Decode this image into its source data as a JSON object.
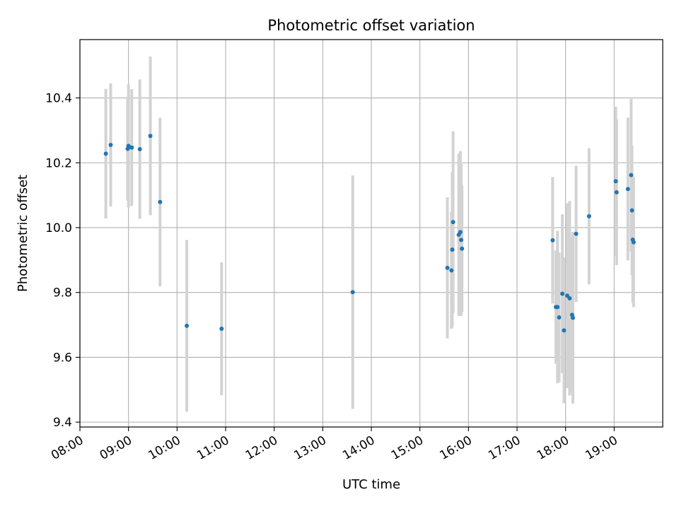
{
  "chart_data": {
    "type": "scatter",
    "title": "Photometric offset variation",
    "xlabel": "UTC time",
    "ylabel": "Photometric offset",
    "x_is_time": true,
    "xlim": [
      "08:00",
      "20:00"
    ],
    "ylim": [
      9.385,
      10.58
    ],
    "xticks": [
      "08:00",
      "09:00",
      "10:00",
      "11:00",
      "12:00",
      "13:00",
      "14:00",
      "15:00",
      "16:00",
      "17:00",
      "18:00",
      "19:00"
    ],
    "yticks": [
      "9.4",
      "9.6",
      "9.8",
      "10.0",
      "10.2",
      "10.4"
    ],
    "grid": true,
    "colors": {
      "point": "#1f77b4",
      "errorbar": "#d3d3d3",
      "grid": "#b0b0b0"
    },
    "series": [
      {
        "points": [
          {
            "x": "08:32",
            "y": 10.228,
            "err": 0.2
          },
          {
            "x": "08:38",
            "y": 10.255,
            "err": 0.19
          },
          {
            "x": "08:59",
            "y": 10.243,
            "err": 0.16
          },
          {
            "x": "09:00",
            "y": 10.252,
            "err": 0.19
          },
          {
            "x": "09:04",
            "y": 10.247,
            "err": 0.18
          },
          {
            "x": "09:14",
            "y": 10.242,
            "err": 0.215
          },
          {
            "x": "09:27",
            "y": 10.283,
            "err": 0.245
          },
          {
            "x": "09:39",
            "y": 10.079,
            "err": 0.26
          },
          {
            "x": "10:12",
            "y": 9.697,
            "err": 0.265
          },
          {
            "x": "10:55",
            "y": 9.688,
            "err": 0.205
          },
          {
            "x": "13:37",
            "y": 9.801,
            "err": 0.36
          },
          {
            "x": "15:34",
            "y": 9.876,
            "err": 0.218
          },
          {
            "x": "15:39",
            "y": 9.868,
            "err": 0.18
          },
          {
            "x": "15:40",
            "y": 9.932,
            "err": 0.24
          },
          {
            "x": "15:41",
            "y": 10.017,
            "err": 0.28
          },
          {
            "x": "15:48",
            "y": 9.978,
            "err": 0.25
          },
          {
            "x": "15:50",
            "y": 9.986,
            "err": 0.25
          },
          {
            "x": "15:51",
            "y": 9.962,
            "err": 0.235
          },
          {
            "x": "15:52",
            "y": 9.935,
            "err": 0.195
          },
          {
            "x": "17:44",
            "y": 9.961,
            "err": 0.195
          },
          {
            "x": "17:48",
            "y": 9.755,
            "err": 0.175
          },
          {
            "x": "17:50",
            "y": 9.755,
            "err": 0.235
          },
          {
            "x": "17:52",
            "y": 9.723,
            "err": 0.2
          },
          {
            "x": "17:56",
            "y": 9.796,
            "err": 0.245
          },
          {
            "x": "17:58",
            "y": 9.683,
            "err": 0.225
          },
          {
            "x": "18:02",
            "y": 9.79,
            "err": 0.285
          },
          {
            "x": "18:05",
            "y": 9.782,
            "err": 0.3
          },
          {
            "x": "18:08",
            "y": 9.731,
            "err": 0.24
          },
          {
            "x": "18:09",
            "y": 9.722,
            "err": 0.265
          },
          {
            "x": "18:13",
            "y": 9.981,
            "err": 0.21
          },
          {
            "x": "18:29",
            "y": 10.035,
            "err": 0.21
          },
          {
            "x": "19:02",
            "y": 10.143,
            "err": 0.23
          },
          {
            "x": "19:03",
            "y": 10.109,
            "err": 0.225
          },
          {
            "x": "19:17",
            "y": 10.119,
            "err": 0.22
          },
          {
            "x": "19:21",
            "y": 10.162,
            "err": 0.235
          },
          {
            "x": "19:22",
            "y": 10.053,
            "err": 0.2
          },
          {
            "x": "19:23",
            "y": 9.963,
            "err": 0.195
          },
          {
            "x": "19:24",
            "y": 9.955,
            "err": 0.2
          }
        ]
      }
    ]
  }
}
